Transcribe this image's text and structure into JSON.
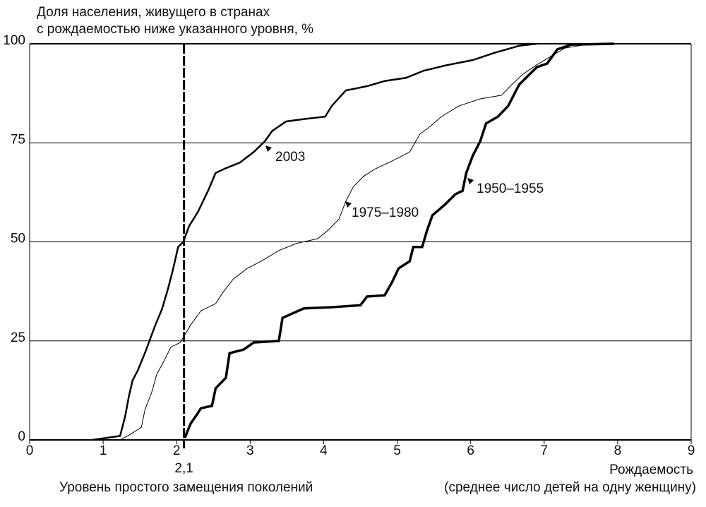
{
  "chart_data": {
    "type": "line",
    "title": [
      "Доля населения, живущего в странах",
      "с рождаемостью ниже указанного уровня, %"
    ],
    "x_label": [
      "Рождаемость",
      "(среднее число детей на одну женщину)"
    ],
    "xlim": [
      0,
      9
    ],
    "xticks": [
      0,
      1,
      2,
      3,
      4,
      5,
      6,
      7,
      8,
      9
    ],
    "ylim": [
      0,
      100
    ],
    "yticks": [
      0,
      25,
      50,
      75,
      100
    ],
    "grid": true,
    "reference_line": {
      "x": {
        "value": 2.1,
        "label": "2,1"
      },
      "text": "Уровень простого замещения поколений"
    },
    "series": [
      {
        "name": "2003",
        "color": "#000000",
        "linewidth": 2.5,
        "x": [
          0.85,
          1.23,
          1.3,
          1.35,
          1.4,
          1.47,
          1.57,
          1.64,
          1.71,
          1.8,
          1.88,
          1.95,
          2.02,
          2.09,
          2.17,
          2.29,
          2.43,
          2.53,
          2.67,
          2.86,
          3.05,
          3.2,
          3.3,
          3.49,
          3.73,
          4.02,
          4.11,
          4.3,
          4.59,
          4.83,
          5.12,
          5.36,
          5.65,
          6.03,
          6.32,
          6.66,
          6.9
        ],
        "values": [
          0,
          1,
          6,
          11,
          15,
          17.5,
          22,
          25.5,
          29,
          33,
          38,
          43,
          48.7,
          50,
          54,
          57.6,
          63,
          67.4,
          68.6,
          70,
          72.7,
          75.4,
          78,
          80.4,
          81,
          81.6,
          84.3,
          88.2,
          89.3,
          90.6,
          91.4,
          93.2,
          94.5,
          95.9,
          97.7,
          99.5,
          100
        ]
      },
      {
        "name": "1975–1980",
        "color": "#000000",
        "linewidth": 1,
        "x": [
          1.23,
          1.37,
          1.52,
          1.57,
          1.66,
          1.73,
          1.83,
          1.92,
          2.05,
          2.19,
          2.33,
          2.53,
          2.62,
          2.77,
          2.96,
          3.15,
          3.39,
          3.63,
          3.92,
          4.07,
          4.21,
          4.3,
          4.4,
          4.54,
          4.69,
          4.93,
          5.17,
          5.31,
          5.46,
          5.6,
          5.84,
          6.13,
          6.42,
          6.56,
          6.71,
          6.9,
          7.09,
          7.28,
          7.57,
          7.95
        ],
        "values": [
          0,
          1.4,
          3.2,
          7.7,
          12,
          16.6,
          20,
          23.4,
          24.6,
          29,
          32.6,
          34.4,
          37,
          40.6,
          43.3,
          45.1,
          47.8,
          49.6,
          50.8,
          53.1,
          55.8,
          60.2,
          63.8,
          66.5,
          68.3,
          70.4,
          72.7,
          77.2,
          79.3,
          81.6,
          84.3,
          86.1,
          87,
          89.7,
          92.3,
          94.7,
          96.8,
          98.9,
          99.8,
          100
        ]
      },
      {
        "name": "1950–1955",
        "color": "#000000",
        "linewidth": 3.5,
        "x": [
          2.11,
          2.19,
          2.29,
          2.33,
          2.48,
          2.53,
          2.67,
          2.72,
          2.91,
          3.05,
          3.39,
          3.44,
          3.73,
          4.11,
          4.5,
          4.59,
          4.83,
          4.93,
          5.02,
          5.17,
          5.22,
          5.34,
          5.41,
          5.48,
          5.65,
          5.79,
          5.89,
          5.94,
          6.03,
          6.13,
          6.21,
          6.37,
          6.51,
          6.66,
          6.9,
          7.04,
          7.18,
          7.37,
          7.95
        ],
        "values": [
          0.5,
          4.1,
          6.8,
          8,
          8.6,
          13,
          15.7,
          21.9,
          22.8,
          24.6,
          25,
          30.8,
          33.2,
          33.5,
          34,
          36.2,
          36.5,
          39.8,
          43.3,
          45.1,
          48.7,
          48.7,
          53.1,
          56.7,
          59.4,
          62,
          62.9,
          67.4,
          71.8,
          75.4,
          79.9,
          81.6,
          84.3,
          89.7,
          94.1,
          95,
          98.6,
          99.8,
          100
        ]
      }
    ]
  }
}
